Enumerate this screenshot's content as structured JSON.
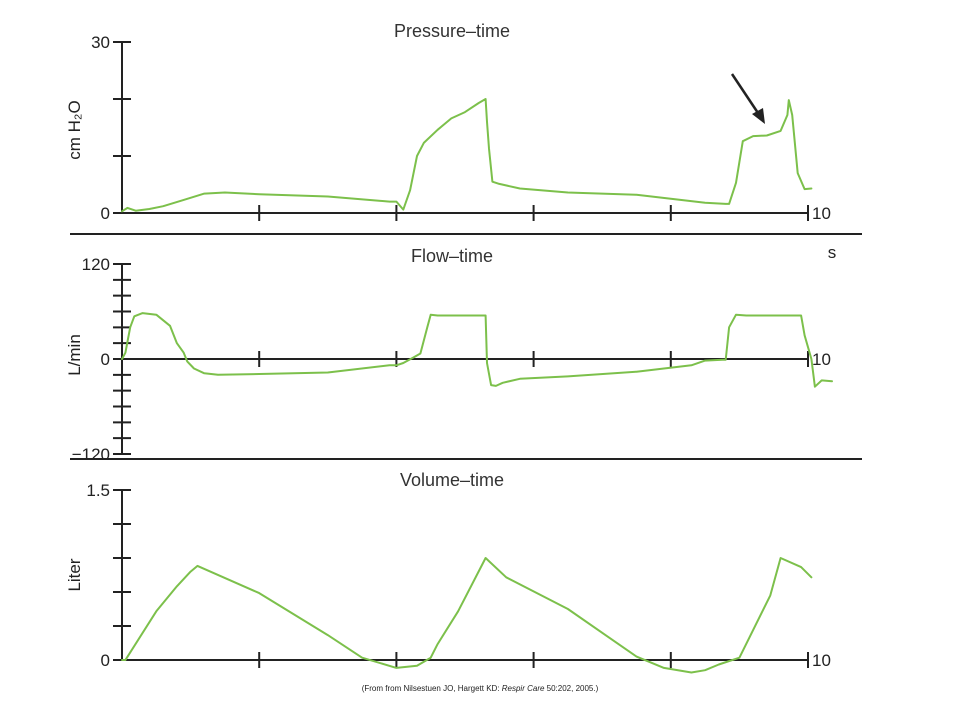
{
  "colors": {
    "trace": "#7cc04b",
    "axis": "#222222"
  },
  "citation": {
    "pre": "(From from Nilsestuen JO, Hargett KD: ",
    "journal": "Respir Care",
    "post": " 50:202, 2005.)"
  },
  "chart_data": [
    {
      "type": "line",
      "title": "Pressure–time",
      "ylabel": "cm H₂O",
      "xlabel": "s",
      "xlim": [
        0,
        10
      ],
      "ylim": [
        0,
        30
      ],
      "x_ticks": [
        0,
        2,
        4,
        6,
        8,
        10
      ],
      "x_tick_labels": {
        "10": "10"
      },
      "y_ticks": [
        0,
        10,
        20,
        30
      ],
      "y_tick_labels": {
        "0": "0",
        "30": "30"
      },
      "annotation": "arrow",
      "series": [
        {
          "x": [
            0,
            0.08,
            0.2,
            0.4,
            0.6,
            0.9,
            1.2,
            1.5,
            2,
            3,
            3.9,
            4.0,
            4.1,
            4.2,
            4.3,
            4.4,
            4.6,
            4.8,
            5.0,
            5.2,
            5.3,
            5.32,
            5.35,
            5.4,
            5.5,
            5.8,
            6.5,
            7.5,
            8.5,
            8.8,
            8.85,
            8.95,
            9.05,
            9.2,
            9.4,
            9.6,
            9.7,
            9.72,
            9.77,
            9.85,
            9.95,
            10.05
          ],
          "y": [
            0.3,
            0.9,
            0.4,
            0.7,
            1.2,
            2.3,
            3.4,
            3.6,
            3.3,
            2.9,
            2.0,
            2.0,
            0.6,
            4,
            10,
            12.3,
            14.6,
            16.6,
            17.7,
            19.3,
            20,
            16,
            11.3,
            5.5,
            5.1,
            4.3,
            3.6,
            3.2,
            1.8,
            1.6,
            1.6,
            5.3,
            12.6,
            13.5,
            13.6,
            14.4,
            17.2,
            19.8,
            17.2,
            7.0,
            4.2,
            4.3
          ]
        }
      ]
    },
    {
      "type": "line",
      "title": "Flow–time",
      "ylabel": "L/min",
      "xlabel": "s",
      "xlim": [
        0,
        10
      ],
      "ylim": [
        -120,
        120
      ],
      "x_ticks": [
        0,
        2,
        4,
        6,
        8,
        10
      ],
      "x_tick_labels": {
        "10": "10"
      },
      "y_ticks": [
        -120,
        -100,
        -80,
        -60,
        -40,
        -20,
        0,
        20,
        40,
        60,
        80,
        100,
        120
      ],
      "y_tick_labels": {
        "-120": "−120",
        "0": "0",
        "120": "120"
      },
      "series": [
        {
          "x": [
            0,
            0.05,
            0.12,
            0.18,
            0.3,
            0.5,
            0.7,
            0.8,
            0.9,
            0.95,
            1.05,
            1.2,
            1.4,
            2,
            3,
            3.9,
            4.0,
            4.1,
            4.25,
            4.35,
            4.45,
            4.5,
            4.6,
            5.3,
            5.32,
            5.38,
            5.45,
            5.55,
            5.8,
            6.5,
            7.5,
            8.3,
            8.5,
            8.75,
            8.8,
            8.85,
            8.95,
            9.1,
            9.9,
            9.95,
            10.05,
            10.1,
            10.2,
            10.35
          ],
          "y": [
            0,
            8,
            40,
            54,
            58,
            56,
            42,
            20,
            8,
            -3,
            -12,
            -18,
            -20,
            -19,
            -17,
            -8,
            -8,
            -5,
            2,
            7,
            40,
            56,
            55,
            55,
            -5,
            -33,
            -34,
            -30,
            -25,
            -22,
            -16,
            -8,
            -2,
            -1,
            -1,
            40,
            56,
            55,
            55,
            30,
            0,
            -35,
            -27,
            -28
          ]
        }
      ]
    },
    {
      "type": "line",
      "title": "Volume–time",
      "ylabel": "Liter",
      "xlabel": "",
      "xlim": [
        0,
        10
      ],
      "ylim": [
        0,
        1.5
      ],
      "x_ticks": [
        0,
        2,
        4,
        6,
        8,
        10
      ],
      "x_tick_labels": {
        "10": "10"
      },
      "y_ticks": [
        0,
        0.3,
        0.6,
        0.9,
        1.2,
        1.5
      ],
      "y_tick_labels": {
        "0": "0",
        "1.5": "1.5"
      },
      "series": [
        {
          "x": [
            0,
            0.05,
            0.5,
            0.8,
            1.0,
            1.1,
            2,
            3,
            3.5,
            4.0,
            4.3,
            4.5,
            4.6,
            4.9,
            5.3,
            5.6,
            6.5,
            7.5,
            7.9,
            8.3,
            8.5,
            8.7,
            9.0,
            9.45,
            9.6,
            9.9,
            10.05
          ],
          "y": [
            0,
            0,
            0.43,
            0.65,
            0.78,
            0.83,
            0.59,
            0.22,
            0.02,
            -0.07,
            -0.05,
            0.02,
            0.14,
            0.43,
            0.9,
            0.73,
            0.45,
            0.03,
            -0.07,
            -0.11,
            -0.09,
            -0.04,
            0.02,
            0.57,
            0.9,
            0.82,
            0.73
          ]
        }
      ]
    }
  ]
}
